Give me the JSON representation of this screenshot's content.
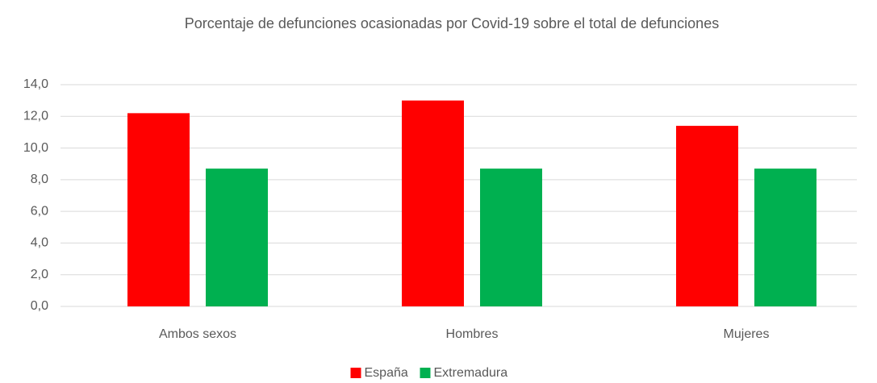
{
  "chart_data": {
    "type": "bar",
    "title": "Porcentaje de defunciones ocasionadas por Covid-19 sobre el total de defunciones",
    "categories": [
      "Ambos sexos",
      "Hombres",
      "Mujeres"
    ],
    "series": [
      {
        "name": "España",
        "color": "#ff0000",
        "values": [
          12.2,
          13.0,
          11.4
        ]
      },
      {
        "name": "Extremadura",
        "color": "#00b050",
        "values": [
          8.7,
          8.7,
          8.7
        ]
      }
    ],
    "ylim": [
      0,
      14
    ],
    "yticks": [
      {
        "value": 0,
        "label": "0,0"
      },
      {
        "value": 2,
        "label": "2,0"
      },
      {
        "value": 4,
        "label": "4,0"
      },
      {
        "value": 6,
        "label": "6,0"
      },
      {
        "value": 8,
        "label": "8,0"
      },
      {
        "value": 10,
        "label": "10,0"
      },
      {
        "value": 12,
        "label": "12,0"
      },
      {
        "value": 14,
        "label": "14,0"
      }
    ],
    "grid": true,
    "legend": "bottom"
  }
}
